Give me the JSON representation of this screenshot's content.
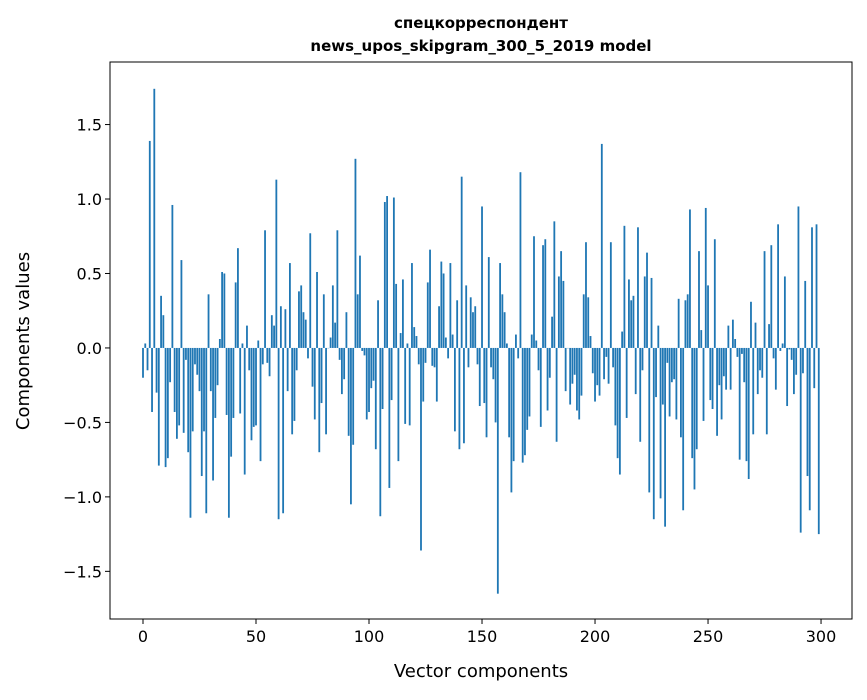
{
  "chart_data": {
    "type": "bar",
    "title": [
      "спецкорреспондент",
      "news_upos_skipgram_300_5_2019 model"
    ],
    "xlabel": "Vector components",
    "ylabel": "Components values",
    "xlim": [
      -14.6,
      313.7
    ],
    "ylim": [
      -1.82,
      1.92
    ],
    "xticks": [
      0,
      50,
      100,
      150,
      200,
      250,
      300
    ],
    "xtick_labels": [
      "0",
      "50",
      "100",
      "150",
      "200",
      "250",
      "300"
    ],
    "yticks": [
      -1.5,
      -1.0,
      -0.5,
      0.0,
      0.5,
      1.0,
      1.5
    ],
    "ytick_labels": [
      "−1.5",
      "−1.0",
      "−0.5",
      "0.0",
      "0.5",
      "1.0",
      "1.5"
    ],
    "grid": false,
    "bar_color": "#1f77b4",
    "values": [
      -0.2,
      0.03,
      -0.15,
      1.39,
      -0.43,
      1.74,
      -0.3,
      -0.79,
      0.35,
      0.22,
      -0.8,
      -0.74,
      -0.23,
      0.96,
      -0.43,
      -0.61,
      -0.52,
      0.59,
      -0.57,
      -0.08,
      -0.7,
      -1.14,
      -0.56,
      -0.11,
      -0.18,
      -0.29,
      -0.86,
      -0.56,
      -1.11,
      0.36,
      -0.29,
      -0.89,
      -0.47,
      -0.25,
      0.06,
      0.51,
      0.5,
      -0.45,
      -1.14,
      -0.73,
      -0.47,
      0.44,
      0.67,
      -0.44,
      0.03,
      -0.85,
      0.15,
      -0.15,
      -0.62,
      -0.53,
      -0.52,
      0.05,
      -0.76,
      -0.11,
      0.79,
      -0.1,
      -0.19,
      0.22,
      0.15,
      1.13,
      -1.15,
      0.28,
      -1.11,
      0.26,
      -0.29,
      0.57,
      -0.58,
      -0.49,
      -0.15,
      0.38,
      0.42,
      0.24,
      0.19,
      -0.07,
      0.77,
      -0.26,
      -0.48,
      0.51,
      -0.7,
      -0.37,
      0.36,
      -0.58,
      0.0,
      0.07,
      0.42,
      0.17,
      0.79,
      -0.08,
      -0.31,
      -0.21,
      0.24,
      -0.59,
      -1.05,
      -0.65,
      1.27,
      0.36,
      0.62,
      -0.02,
      -0.05,
      -0.48,
      -0.43,
      -0.27,
      -0.22,
      -0.68,
      0.32,
      -1.13,
      -0.41,
      0.98,
      1.02,
      -0.94,
      -0.35,
      1.01,
      0.43,
      -0.76,
      0.1,
      0.46,
      -0.51,
      0.03,
      -0.52,
      0.57,
      0.14,
      0.08,
      -0.11,
      -1.36,
      -0.36,
      -0.1,
      0.44,
      0.66,
      -0.12,
      -0.13,
      -0.36,
      0.28,
      0.58,
      0.5,
      0.07,
      -0.07,
      0.57,
      0.09,
      -0.56,
      0.32,
      -0.68,
      1.15,
      -0.64,
      0.42,
      -0.13,
      0.34,
      0.24,
      0.28,
      -0.11,
      -0.39,
      0.95,
      -0.37,
      -0.6,
      0.61,
      -0.13,
      -0.21,
      -0.5,
      -1.65,
      0.57,
      0.36,
      0.24,
      0.03,
      -0.6,
      -0.97,
      -0.76,
      0.09,
      -0.07,
      1.18,
      -0.77,
      -0.72,
      -0.55,
      -0.46,
      0.09,
      0.75,
      0.05,
      -0.15,
      -0.53,
      0.69,
      0.73,
      -0.42,
      -0.2,
      0.21,
      0.85,
      -0.63,
      0.48,
      0.65,
      0.45,
      -0.29,
      0.0,
      -0.38,
      -0.24,
      -0.18,
      -0.42,
      -0.48,
      -0.32,
      0.36,
      0.71,
      0.34,
      0.08,
      -0.17,
      -0.36,
      -0.25,
      -0.32,
      1.37,
      -0.21,
      -0.06,
      -0.24,
      0.71,
      -0.13,
      -0.52,
      -0.74,
      -0.85,
      0.11,
      0.82,
      -0.47,
      0.46,
      0.32,
      0.35,
      -0.31,
      0.81,
      -0.63,
      -0.15,
      0.48,
      0.64,
      -0.97,
      0.47,
      -1.15,
      -0.33,
      0.15,
      -1.01,
      -0.38,
      -1.2,
      -0.1,
      -0.46,
      -0.23,
      -0.21,
      -0.48,
      0.33,
      -0.6,
      -1.09,
      0.32,
      0.36,
      0.93,
      -0.74,
      -0.95,
      -0.68,
      0.65,
      0.12,
      -0.49,
      0.94,
      0.42,
      -0.35,
      -0.41,
      0.73,
      -0.59,
      -0.25,
      -0.48,
      -0.19,
      -0.28,
      0.15,
      -0.28,
      0.19,
      0.06,
      -0.06,
      -0.75,
      -0.04,
      -0.23,
      -0.76,
      -0.88,
      0.31,
      -0.58,
      0.17,
      -0.31,
      -0.15,
      -0.2,
      0.65,
      -0.58,
      0.16,
      0.69,
      -0.07,
      -0.28,
      0.83,
      -0.02,
      0.03,
      0.48,
      -0.39,
      -0.01,
      -0.08,
      -0.31,
      -0.18,
      0.95,
      -1.24,
      -0.17,
      0.45,
      -0.86,
      -1.09,
      0.81,
      -0.27,
      0.83,
      -1.25
    ]
  }
}
